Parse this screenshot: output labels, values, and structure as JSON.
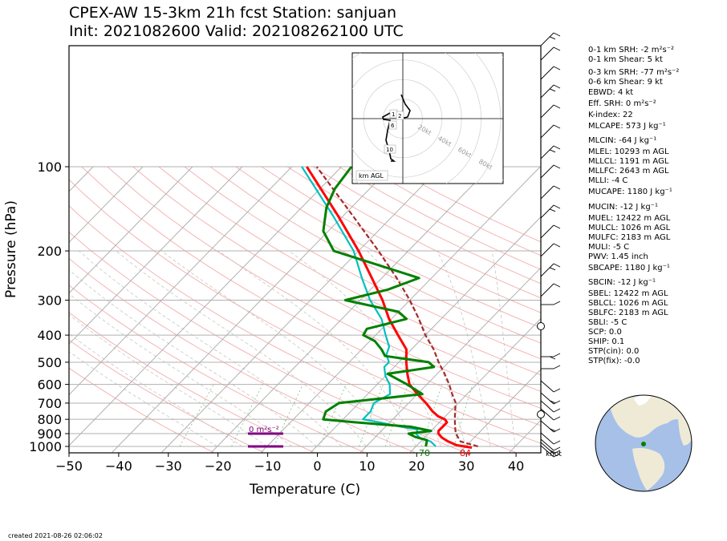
{
  "title_line1": "CPEX-AW 15-3km  21h fcst  Station: sanjuan",
  "title_line2": "Init: 2021082600  Valid: 202108262100 UTC",
  "created": "created 2021-08-26 02:06:02",
  "chart_data": {
    "type": "skew-t",
    "xlabel": "Temperature (C)",
    "ylabel": "Pressure (hPa)",
    "xlim": [
      -50,
      45
    ],
    "ylim": [
      1050,
      100
    ],
    "y_scale": "log",
    "x_ticks": [
      "−50",
      "−40",
      "−30",
      "−20",
      "−10",
      "0",
      "10",
      "20",
      "30",
      "40"
    ],
    "y_ticks": [
      "100",
      "200",
      "300",
      "400",
      "500",
      "600",
      "700",
      "800",
      "900",
      "1000"
    ],
    "temperature_C": {
      "color": "#ff0000",
      "p": [
        1010,
        990,
        960,
        930,
        900,
        880,
        850,
        820,
        800,
        780,
        750,
        700,
        650,
        600,
        550,
        500,
        450,
        400,
        350,
        300,
        250,
        200,
        150,
        100
      ],
      "v": [
        31.5,
        28,
        25.5,
        23.5,
        22,
        21.5,
        21.5,
        21.5,
        20.5,
        18.5,
        16.5,
        13.5,
        10,
        6.5,
        4,
        1.5,
        -1,
        -5.5,
        -10.5,
        -15.5,
        -22,
        -30,
        -41,
        -57
      ]
    },
    "dewpoint_C": {
      "color": "#008000",
      "p": [
        1000,
        950,
        925,
        900,
        880,
        850,
        820,
        800,
        750,
        700,
        650,
        600,
        550,
        520,
        500,
        475,
        450,
        420,
        400,
        380,
        350,
        330,
        300,
        275,
        250,
        200,
        170,
        140,
        120,
        100
      ],
      "v": [
        22,
        21,
        18,
        16,
        20,
        15,
        3,
        -4,
        -5,
        -4,
        11,
        6,
        0,
        8,
        6,
        -4,
        -6,
        -9,
        -12.5,
        -13,
        -7,
        -10,
        -23,
        -16.5,
        -12.5,
        -35,
        -41,
        -45,
        -47,
        -48
      ]
    },
    "virtual_temp_C": {
      "color": "#00bfbf",
      "p": [
        1000,
        960,
        930,
        900,
        870,
        850,
        820,
        800,
        750,
        700,
        650,
        600,
        560,
        520,
        500,
        470,
        440,
        400,
        350,
        300,
        250,
        200,
        150,
        100
      ],
      "v": [
        24,
        22,
        19,
        17.5,
        17,
        13,
        8,
        4,
        4,
        3,
        4.5,
        2.5,
        0,
        -2,
        -2,
        -4,
        -5,
        -8,
        -12,
        -18,
        -24,
        -31,
        -42,
        -58
      ]
    },
    "parcel_C": {
      "color": "#a52a2a",
      "p": [
        1000,
        960,
        900,
        850,
        800,
        750,
        700,
        650,
        600,
        550,
        500,
        450,
        400,
        350,
        300,
        250,
        200,
        150,
        100
      ],
      "v": [
        32.5,
        28,
        25.5,
        24,
        22.5,
        21,
        19.5,
        17,
        14.5,
        11.5,
        8,
        4.5,
        0,
        -4.5,
        -10,
        -17,
        -26,
        -38,
        -55
      ]
    },
    "surface_labels": [
      "70",
      "84"
    ],
    "srh_annotation": "0 m²s⁻²",
    "wind_axis_label": "knot",
    "hodograph": {
      "rings": [
        "20kt",
        "40kt",
        "60kt",
        "80kt"
      ],
      "height_labels": [
        "1",
        "2",
        "6",
        "10"
      ],
      "box_label": "km AGL"
    },
    "indices": [
      "0-1 km SRH: -2 m²s⁻²",
      "0-1 km Shear: 5 kt",
      "0-3 km SRH: -77 m²s⁻²",
      "0-6 km Shear: 9 kt",
      "EBWD: 4 kt",
      "Eff. SRH: 0 m²s⁻²",
      "K-index: 22",
      "MLCAPE: 573 J kg⁻¹",
      "MLCIN: -64 J kg⁻¹",
      "MLEL: 10293 m AGL",
      "MLLCL: 1191 m AGL",
      "MLLFC: 2643 m AGL",
      "MLLI: -4 C",
      "MUCAPE: 1180 J kg⁻¹",
      "MUCIN: -12 J kg⁻¹",
      "MUEL: 12422 m AGL",
      "MULCL: 1026 m AGL",
      "MULFC: 2183 m AGL",
      "MULI: -5 C",
      "PWV: 1.45 inch",
      "SBCAPE: 1180 J kg⁻¹",
      "SBCIN: -12 J kg⁻¹",
      "SBEL: 12422 m AGL",
      "SBLCL: 1026 m AGL",
      "SBLFC: 2183 m AGL",
      "SBLI: -5 C",
      "SCP: 0.0",
      "SHIP: 0.1",
      "STP(cin): 0.0",
      "STP(fix): -0.0"
    ]
  }
}
